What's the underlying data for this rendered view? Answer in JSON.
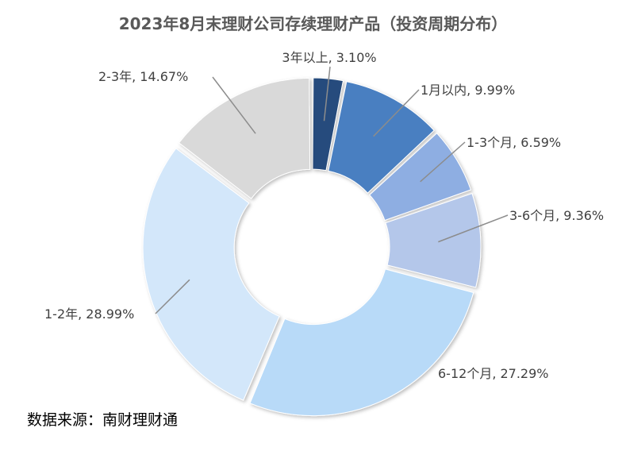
{
  "chart_data": {
    "type": "pie",
    "title": "2023年8月末理财公司存续理财产品（投资周期分布）",
    "series": [
      {
        "name": "3年以上",
        "label": "3年以上, 3.10%",
        "value": 3.1,
        "color": "#264b7d"
      },
      {
        "name": "1月以内",
        "label": "1月以内, 9.99%",
        "value": 9.99,
        "color": "#4a7fc1"
      },
      {
        "name": "1-3个月",
        "label": "1-3个月, 6.59%",
        "value": 6.59,
        "color": "#8eaee2"
      },
      {
        "name": "3-6个月",
        "label": "3-6个月, 9.36%",
        "value": 9.36,
        "color": "#b4c7ea"
      },
      {
        "name": "6-12个月",
        "label": "6-12个月, 27.29%",
        "value": 27.29,
        "color": "#b8daf8"
      },
      {
        "name": "1-2年",
        "label": "1-2年, 28.99%",
        "value": 28.99,
        "color": "#d3e7fa"
      },
      {
        "name": "2-3年",
        "label": "2-3年, 14.67%",
        "value": 14.67,
        "color": "#d9d9d9"
      }
    ]
  },
  "footer": {
    "source": "数据来源：南财理财通"
  }
}
